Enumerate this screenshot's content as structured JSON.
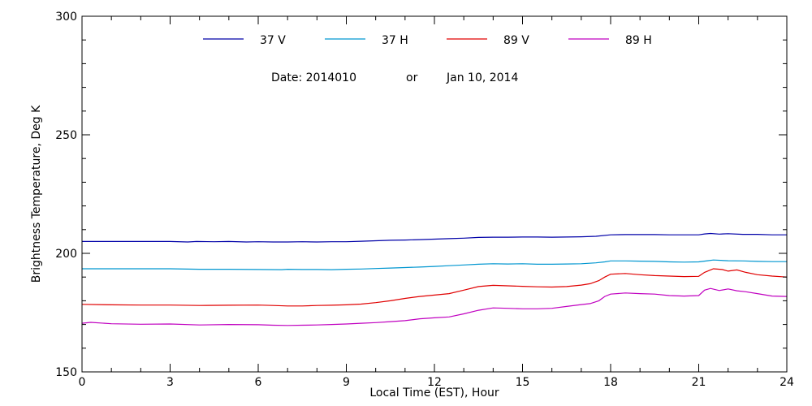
{
  "chart_data": {
    "type": "line",
    "title": "",
    "annotation": {
      "date_code": "Date: 2014010",
      "connector": "or",
      "date_text": "Jan 10, 2014"
    },
    "xlabel": "Local Time (EST), Hour",
    "ylabel": "Brightness Temperature, Deg K",
    "xlim": [
      0,
      24
    ],
    "ylim": [
      150,
      300
    ],
    "x_ticks": [
      0,
      3,
      6,
      9,
      12,
      15,
      18,
      21,
      24
    ],
    "y_ticks": [
      150,
      200,
      250,
      300
    ],
    "x_minor_step": 1,
    "y_minor_step": 10,
    "grid": false,
    "legend_position": "top",
    "series": [
      {
        "name": "37 V",
        "color": "#0000a8",
        "x": [
          0,
          1,
          2,
          3,
          3.6,
          3.9,
          4.5,
          5,
          5.6,
          6,
          6.5,
          7,
          7.5,
          8,
          8.5,
          9,
          9.5,
          10,
          10.5,
          11,
          11.5,
          12,
          12.5,
          13,
          13.5,
          14,
          14.5,
          15,
          15.5,
          16,
          16.5,
          17,
          17.5,
          18,
          18.5,
          19,
          19.5,
          20,
          20.5,
          21,
          21.2,
          21.4,
          21.7,
          22,
          22.5,
          23,
          23.5,
          24
        ],
        "values": [
          205,
          205,
          205,
          205,
          204.8,
          205,
          204.9,
          205,
          204.8,
          204.9,
          204.8,
          204.8,
          204.9,
          204.8,
          204.9,
          204.9,
          205.1,
          205.3,
          205.5,
          205.6,
          205.8,
          206,
          206.2,
          206.4,
          206.7,
          206.8,
          206.8,
          206.9,
          206.9,
          206.8,
          206.9,
          207,
          207.2,
          207.8,
          207.9,
          207.9,
          207.9,
          207.8,
          207.8,
          207.8,
          208.2,
          208.4,
          208.1,
          208.3,
          208,
          208,
          207.8,
          207.8
        ]
      },
      {
        "name": "37 H",
        "color": "#0096d0",
        "x": [
          0,
          1,
          2,
          3,
          4,
          5,
          6,
          6.8,
          7,
          7.5,
          8,
          8.5,
          9,
          9.5,
          10,
          10.5,
          11,
          11.5,
          12,
          12.5,
          13,
          13.5,
          14,
          14.5,
          15,
          15.5,
          16,
          16.5,
          17,
          17.5,
          17.8,
          18,
          18.5,
          19,
          19.5,
          20,
          20.5,
          21,
          21.3,
          21.5,
          22,
          22.5,
          23,
          23.5,
          24
        ],
        "values": [
          193.5,
          193.5,
          193.5,
          193.5,
          193.3,
          193.3,
          193.2,
          193.1,
          193.3,
          193.2,
          193.2,
          193.1,
          193.3,
          193.4,
          193.6,
          193.8,
          194,
          194.2,
          194.5,
          194.8,
          195.1,
          195.4,
          195.6,
          195.5,
          195.6,
          195.4,
          195.4,
          195.5,
          195.6,
          196,
          196.4,
          196.8,
          196.8,
          196.7,
          196.6,
          196.4,
          196.3,
          196.4,
          196.9,
          197.2,
          196.9,
          196.8,
          196.6,
          196.5,
          196.5
        ]
      },
      {
        "name": "89 V",
        "color": "#e00000",
        "x": [
          0,
          1,
          2,
          3,
          4,
          5,
          6,
          6.5,
          7,
          7.5,
          8,
          8.5,
          9,
          9.5,
          10,
          10.5,
          11,
          11.5,
          12,
          12.5,
          13,
          13.5,
          14,
          14.5,
          15,
          15.5,
          16,
          16.5,
          17,
          17.3,
          17.6,
          17.8,
          18,
          18.5,
          19,
          19.5,
          20,
          20.5,
          21,
          21.2,
          21.5,
          21.8,
          22,
          22.3,
          22.6,
          23,
          23.5,
          24
        ],
        "values": [
          178.5,
          178.3,
          178.2,
          178.2,
          178,
          178.1,
          178.2,
          178,
          177.8,
          177.8,
          178,
          178.1,
          178.3,
          178.6,
          179.2,
          180,
          181,
          181.8,
          182.4,
          183,
          184.5,
          186,
          186.5,
          186.3,
          186.1,
          185.9,
          185.8,
          186,
          186.6,
          187.2,
          188.5,
          190,
          191.2,
          191.5,
          191,
          190.6,
          190.4,
          190.2,
          190.3,
          192,
          193.5,
          193.2,
          192.5,
          193,
          192,
          191,
          190.4,
          190
        ]
      },
      {
        "name": "89 H",
        "color": "#c000c0",
        "x": [
          0,
          0.3,
          1,
          2,
          3,
          4,
          5,
          6,
          6.5,
          7,
          7.5,
          8,
          8.5,
          9,
          9.5,
          10,
          10.5,
          11,
          11.5,
          12,
          12.5,
          13,
          13.5,
          14,
          14.5,
          15,
          15.5,
          16,
          16.5,
          17,
          17.3,
          17.6,
          17.8,
          18,
          18.5,
          19,
          19.5,
          20,
          20.5,
          21,
          21.2,
          21.4,
          21.7,
          22,
          22.3,
          22.6,
          23,
          23.5,
          24
        ],
        "values": [
          170.5,
          170.9,
          170.3,
          170.1,
          170.2,
          169.8,
          170,
          169.9,
          169.7,
          169.6,
          169.7,
          169.8,
          170,
          170.2,
          170.5,
          170.8,
          171.2,
          171.6,
          172.4,
          172.8,
          173.2,
          174.5,
          176,
          177,
          176.8,
          176.6,
          176.6,
          176.8,
          177.6,
          178.4,
          178.8,
          180,
          181.8,
          182.8,
          183.3,
          183,
          182.8,
          182.2,
          182,
          182.2,
          184.5,
          185.2,
          184.3,
          185,
          184.2,
          183.8,
          183,
          182,
          181.8
        ]
      }
    ]
  }
}
